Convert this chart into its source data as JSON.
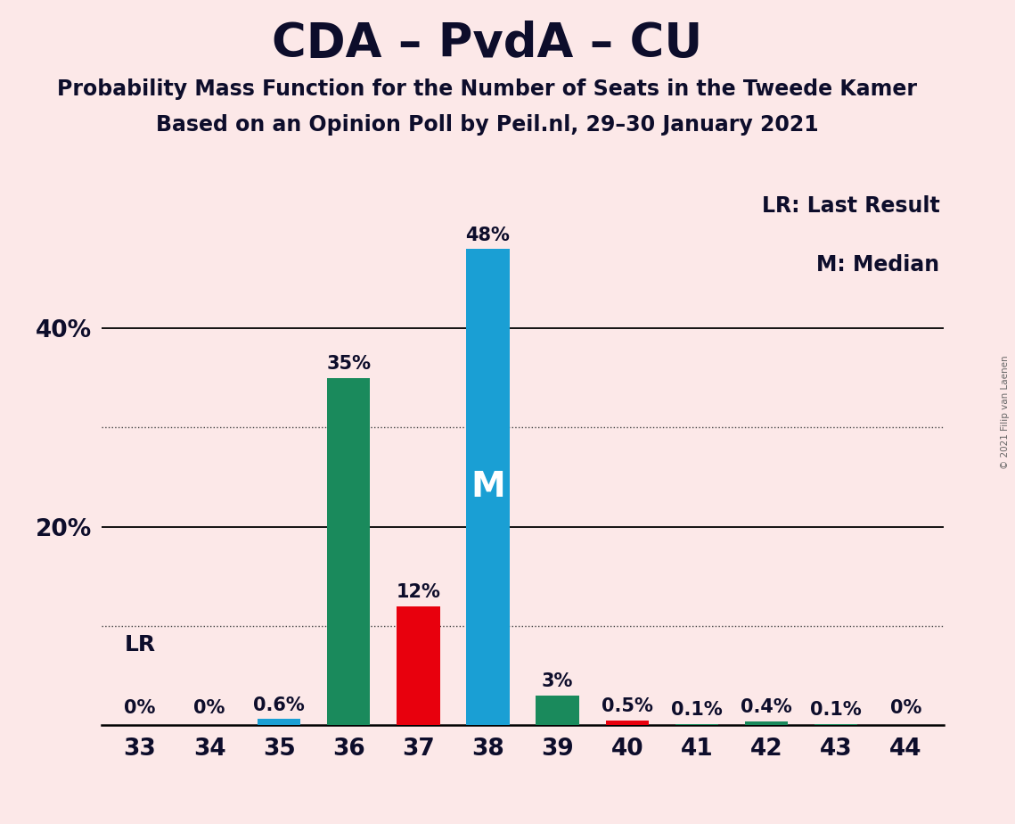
{
  "title": "CDA – PvdA – CU",
  "subtitle1": "Probability Mass Function for the Number of Seats in the Tweede Kamer",
  "subtitle2": "Based on an Opinion Poll by Peil.nl, 29–30 January 2021",
  "watermark": "© 2021 Filip van Laenen",
  "categories": [
    33,
    34,
    35,
    36,
    37,
    38,
    39,
    40,
    41,
    42,
    43,
    44
  ],
  "values": [
    0.0,
    0.0,
    0.6,
    35.0,
    12.0,
    48.0,
    3.0,
    0.5,
    0.1,
    0.4,
    0.1,
    0.0
  ],
  "labels": [
    "0%",
    "0%",
    "0.6%",
    "35%",
    "12%",
    "48%",
    "3%",
    "0.5%",
    "0.1%",
    "0.4%",
    "0.1%",
    "0%"
  ],
  "colors": [
    "#1a9fd4",
    "#1a9fd4",
    "#1a9fd4",
    "#1a8a5c",
    "#e8000d",
    "#1a9fd4",
    "#1a8a5c",
    "#e8000d",
    "#1a8a5c",
    "#1a8a5c",
    "#1a8a5c",
    "#1a9fd4"
  ],
  "median_bar_idx": 5,
  "lr_bar_idx": 0,
  "lr_label": "LR",
  "median_label": "M",
  "legend_lr": "LR: Last Result",
  "legend_m": "M: Median",
  "background_color": "#fce8e8",
  "ylim": [
    0,
    54
  ],
  "solid_gridlines": [
    20,
    40
  ],
  "dotted_gridlines": [
    10,
    30
  ],
  "title_fontsize": 38,
  "subtitle_fontsize": 17,
  "label_fontsize": 15,
  "tick_fontsize": 19,
  "legend_fontsize": 17,
  "bar_width": 0.62
}
